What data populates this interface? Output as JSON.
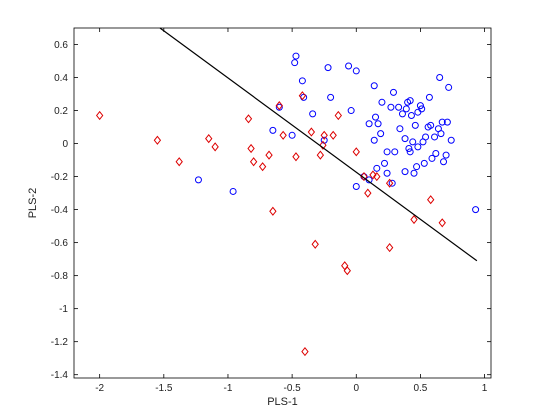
{
  "chart_data": {
    "type": "scatter",
    "title": "",
    "xlabel": "PLS-1",
    "ylabel": "PLS-2",
    "xlim": [
      -2.2,
      1.05
    ],
    "ylim": [
      -1.42,
      0.7
    ],
    "xticks": [
      -2,
      -1.5,
      -1,
      -0.5,
      0,
      0.5,
      1
    ],
    "xtick_labels": [
      "-2",
      "-1.5",
      "-1",
      "-0.5",
      "0",
      "0.5",
      "1"
    ],
    "yticks": [
      -1.4,
      -1.2,
      -1,
      -0.8,
      -0.6,
      -0.4,
      -0.2,
      0,
      0.2,
      0.4,
      0.6
    ],
    "ytick_labels": [
      "-1.4",
      "-1.2",
      "-1",
      "-0.8",
      "-0.6",
      "-0.4",
      "-0.2",
      "0",
      "0.2",
      "0.4",
      "0.6"
    ],
    "grid": false,
    "legend": "none",
    "line": {
      "x": [
        -1.53,
        0.94
      ],
      "y": [
        0.7,
        -0.71
      ],
      "color": "#000000"
    },
    "series": [
      {
        "marker": "circle",
        "color": "#0000ff",
        "points": [
          [
            -0.47,
            0.53
          ],
          [
            -0.48,
            0.49
          ],
          [
            -0.42,
            0.38
          ],
          [
            -0.41,
            0.28
          ],
          [
            -0.22,
            0.46
          ],
          [
            0.0,
            0.44
          ],
          [
            -0.34,
            0.18
          ],
          [
            -0.2,
            0.28
          ],
          [
            -0.06,
            0.47
          ],
          [
            0.14,
            0.35
          ],
          [
            0.2,
            0.25
          ],
          [
            0.27,
            0.22
          ],
          [
            0.29,
            0.31
          ],
          [
            0.33,
            0.22
          ],
          [
            0.36,
            0.18
          ],
          [
            0.39,
            0.21
          ],
          [
            0.4,
            0.25
          ],
          [
            0.42,
            0.26
          ],
          [
            0.43,
            0.17
          ],
          [
            0.48,
            0.19
          ],
          [
            0.5,
            0.23
          ],
          [
            0.51,
            0.21
          ],
          [
            0.57,
            0.28
          ],
          [
            0.65,
            0.4
          ],
          [
            0.72,
            0.34
          ],
          [
            -0.04,
            0.2
          ],
          [
            0.1,
            0.12
          ],
          [
            0.15,
            0.16
          ],
          [
            0.17,
            0.12
          ],
          [
            0.19,
            0.06
          ],
          [
            0.14,
            0.02
          ],
          [
            0.24,
            -0.05
          ],
          [
            0.22,
            -0.12
          ],
          [
            0.3,
            -0.05
          ],
          [
            0.34,
            0.09
          ],
          [
            0.38,
            0.03
          ],
          [
            0.41,
            -0.03
          ],
          [
            0.44,
            0.01
          ],
          [
            0.46,
            0.11
          ],
          [
            0.48,
            -0.02
          ],
          [
            0.52,
            0.01
          ],
          [
            0.54,
            0.04
          ],
          [
            0.56,
            0.1
          ],
          [
            0.58,
            0.11
          ],
          [
            0.61,
            0.04
          ],
          [
            0.64,
            0.09
          ],
          [
            0.67,
            0.13
          ],
          [
            0.71,
            0.13
          ],
          [
            0.74,
            0.02
          ],
          [
            0.68,
            -0.11
          ],
          [
            0.7,
            -0.07
          ],
          [
            0.62,
            -0.06
          ],
          [
            0.59,
            -0.09
          ],
          [
            0.53,
            -0.12
          ],
          [
            0.47,
            -0.14
          ],
          [
            0.45,
            -0.18
          ],
          [
            0.42,
            -0.05
          ],
          [
            0.38,
            -0.17
          ],
          [
            0.24,
            -0.18
          ],
          [
            0.28,
            -0.24
          ],
          [
            0.0,
            -0.26
          ],
          [
            0.06,
            -0.2
          ],
          [
            0.16,
            -0.15
          ],
          [
            0.1,
            -0.22
          ],
          [
            -0.25,
            0.02
          ],
          [
            -0.5,
            0.05
          ],
          [
            -0.6,
            0.22
          ],
          [
            -0.65,
            0.08
          ],
          [
            -0.96,
            -0.29
          ],
          [
            -1.23,
            -0.22
          ],
          [
            0.93,
            -0.4
          ],
          [
            0.66,
            0.06
          ]
        ]
      },
      {
        "marker": "diamond",
        "color": "#dd0000",
        "points": [
          [
            -2.0,
            0.17
          ],
          [
            -1.55,
            0.02
          ],
          [
            -1.38,
            -0.11
          ],
          [
            -1.15,
            0.03
          ],
          [
            -1.1,
            -0.02
          ],
          [
            -0.84,
            0.15
          ],
          [
            -0.82,
            -0.03
          ],
          [
            -0.8,
            -0.11
          ],
          [
            -0.73,
            -0.14
          ],
          [
            -0.68,
            -0.07
          ],
          [
            -0.65,
            -0.41
          ],
          [
            -0.6,
            0.23
          ],
          [
            -0.57,
            0.05
          ],
          [
            -0.47,
            -0.08
          ],
          [
            -0.42,
            0.29
          ],
          [
            -0.35,
            0.07
          ],
          [
            -0.28,
            -0.07
          ],
          [
            -0.26,
            -0.01
          ],
          [
            -0.25,
            0.05
          ],
          [
            -0.18,
            0.05
          ],
          [
            -0.14,
            0.17
          ],
          [
            -0.09,
            -0.74
          ],
          [
            -0.07,
            -0.77
          ],
          [
            -0.32,
            -0.61
          ],
          [
            -0.4,
            -1.26
          ],
          [
            0.0,
            -0.05
          ],
          [
            0.06,
            -0.2
          ],
          [
            0.09,
            -0.3
          ],
          [
            0.13,
            -0.19
          ],
          [
            0.16,
            -0.2
          ],
          [
            0.26,
            -0.24
          ],
          [
            0.26,
            -0.63
          ],
          [
            0.45,
            -0.46
          ],
          [
            0.58,
            -0.34
          ],
          [
            0.67,
            -0.48
          ]
        ]
      }
    ]
  }
}
